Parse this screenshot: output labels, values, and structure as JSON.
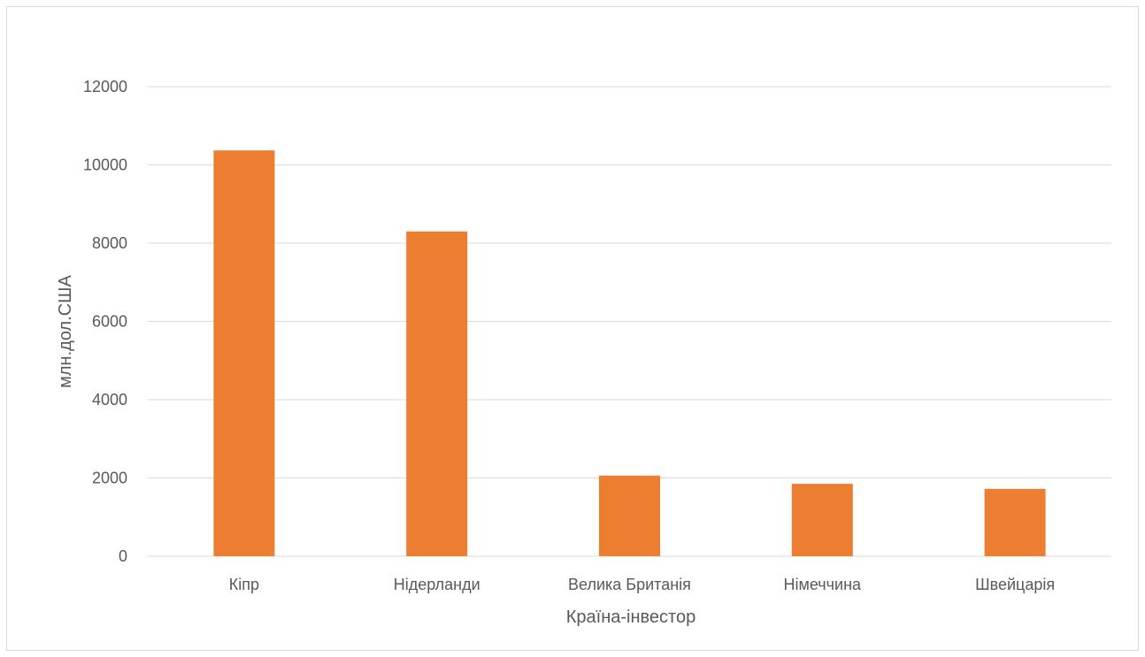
{
  "chart_data": {
    "type": "bar",
    "title": "",
    "xlabel": "Країна-інвестор",
    "ylabel": "млн.дол.США",
    "categories": [
      "Кіпр",
      "Нідерланди",
      "Велика Британія",
      "Німеччина",
      "Швейцарія"
    ],
    "values": [
      10370,
      8300,
      2060,
      1850,
      1720
    ],
    "ylim": [
      0,
      12000
    ],
    "yticks": [
      0,
      2000,
      4000,
      6000,
      8000,
      10000,
      12000
    ],
    "grid": true,
    "legend": "none",
    "colors": {
      "bar": "#ED7D31"
    }
  }
}
